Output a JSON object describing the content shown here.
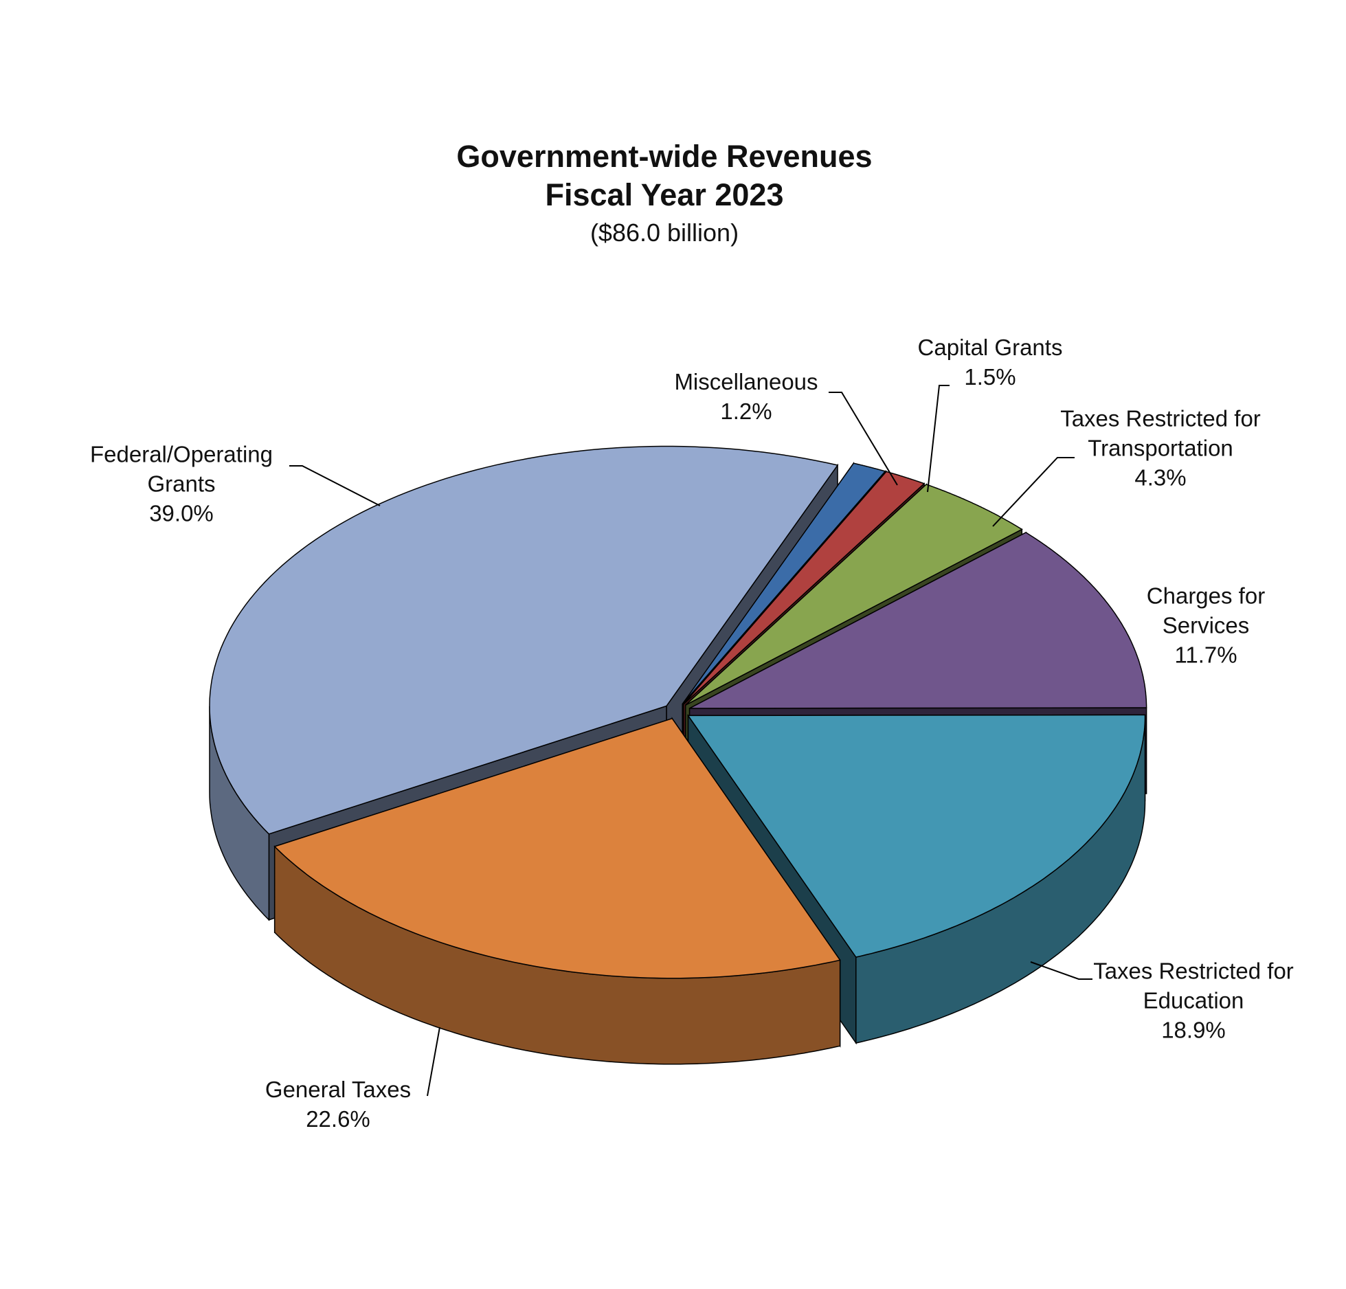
{
  "chart_data": {
    "type": "pie",
    "title": "Government-wide Revenues Fiscal Year 2023",
    "subtitle": "($86.0 billion)",
    "categories": [
      "Federal/Operating Grants",
      "General Taxes",
      "Taxes Restricted for Education",
      "Charges for Services",
      "Taxes Restricted for Transportation",
      "Capital Grants",
      "Miscellaneous"
    ],
    "values": [
      39.0,
      22.6,
      18.9,
      11.7,
      4.3,
      1.5,
      1.2
    ],
    "value_labels": [
      "39.0%",
      "22.6%",
      "18.9%",
      "11.7%",
      "4.3%",
      "1.5%",
      "1.2%"
    ],
    "colors": [
      "#95a9cf",
      "#dc823d",
      "#4397b3",
      "#70568c",
      "#88a54f",
      "#b0413f",
      "#3b6ca8"
    ]
  }
}
